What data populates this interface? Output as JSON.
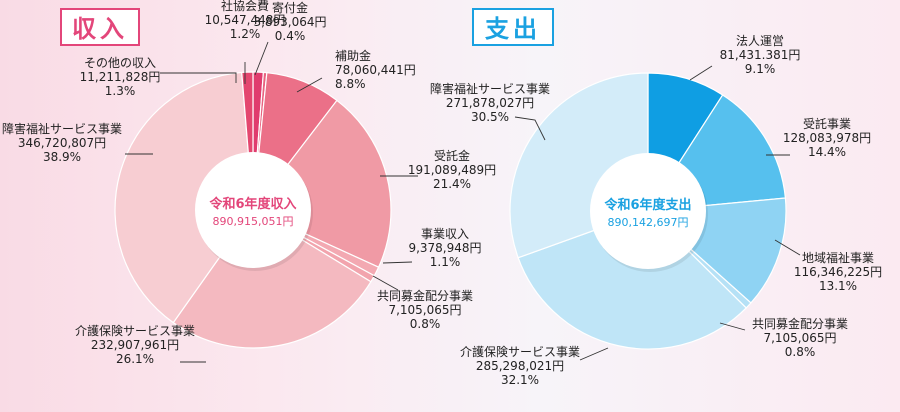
{
  "headers": {
    "income": "収入",
    "expense": "支出"
  },
  "chart_data": [
    {
      "type": "pie",
      "title": "令和6年度収入",
      "total_text": "890,915,051円",
      "slices": [
        {
          "label": "社協会費",
          "amount": "10,547,448円",
          "percent": 1.2,
          "percent_text": "1.2%",
          "color": "#e03c6e"
        },
        {
          "label": "寄付金",
          "amount": "3,893,064円",
          "percent": 0.4,
          "percent_text": "0.4%",
          "color": "#e8627f"
        },
        {
          "label": "補助金",
          "amount": "78,060,441円",
          "percent": 8.8,
          "percent_text": "8.8%",
          "color": "#eb7088"
        },
        {
          "label": "受託金",
          "amount": "191,089,489円",
          "percent": 21.4,
          "percent_text": "21.4%",
          "color": "#f09aa5"
        },
        {
          "label": "事業収入",
          "amount": "9,378,948円",
          "percent": 1.1,
          "percent_text": "1.1%",
          "color": "#f3a9b2"
        },
        {
          "label": "共同募金配分事業",
          "amount": "7,105,065円",
          "percent": 0.8,
          "percent_text": "0.8%",
          "color": "#f2a4ad"
        },
        {
          "label": "介護保険サービス事業",
          "amount": "232,907,961円",
          "percent": 26.1,
          "percent_text": "26.1%",
          "color": "#f4b9c0"
        },
        {
          "label": "障害福祉サービス事業",
          "amount": "346,720,807円",
          "percent": 38.9,
          "percent_text": "38.9%",
          "color": "#f7cdd2"
        },
        {
          "label": "その他の収入",
          "amount": "11,211,828円",
          "percent": 1.3,
          "percent_text": "1.3%",
          "color": "#e4476f"
        }
      ]
    },
    {
      "type": "pie",
      "title": "令和6年度支出",
      "total_text": "890,142,697円",
      "slices": [
        {
          "label": "法人運営",
          "amount": "81,431.381円",
          "percent": 9.1,
          "percent_text": "9.1%",
          "color": "#0f9ee3"
        },
        {
          "label": "受託事業",
          "amount": "128,083,978円",
          "percent": 14.4,
          "percent_text": "14.4%",
          "color": "#56c0ee"
        },
        {
          "label": "地域福祉事業",
          "amount": "116,346,225円",
          "percent": 13.1,
          "percent_text": "13.1%",
          "color": "#8fd3f3"
        },
        {
          "label": "共同募金配分事業",
          "amount": "7,105,065円",
          "percent": 0.8,
          "percent_text": "0.8%",
          "color": "#b5e1f6"
        },
        {
          "label": "介護保険サービス事業",
          "amount": "285,298,021円",
          "percent": 32.1,
          "percent_text": "32.1%",
          "color": "#bfe5f7"
        },
        {
          "label": "障害福祉サービス事業",
          "amount": "271,878,027円",
          "percent": 30.5,
          "percent_text": "30.5%",
          "color": "#d3ecf9"
        }
      ]
    }
  ]
}
